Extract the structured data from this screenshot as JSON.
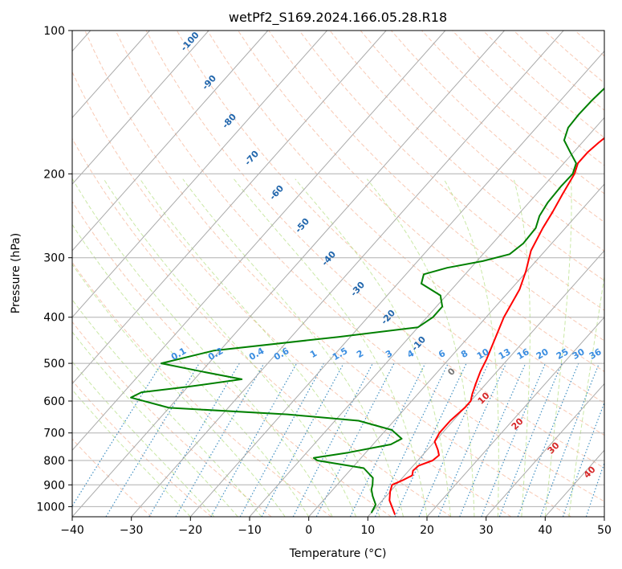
{
  "chart_data": {
    "type": "line",
    "title": "wetPf2_S169.2024.166.05.28.R18",
    "xlabel": "Temperature (°C)",
    "ylabel": "Pressure (hPa)",
    "xlim": [
      -40,
      50
    ],
    "ylim": [
      1050,
      100
    ],
    "y_scale": "log",
    "grid": "horizontal at pressure ticks; skewed isotherms every 10 °C",
    "x_ticks": [
      -40,
      -30,
      -20,
      -10,
      0,
      10,
      20,
      30,
      40,
      50
    ],
    "y_ticks": [
      100,
      200,
      300,
      400,
      500,
      600,
      700,
      800,
      900,
      1000
    ],
    "series": [
      {
        "color": "#ff0000",
        "points": [
          [
            14.3,
            1040
          ],
          [
            13,
            1010
          ],
          [
            11.2,
            970
          ],
          [
            10,
            930
          ],
          [
            9.3,
            900
          ],
          [
            10.4,
            880
          ],
          [
            11.3,
            860
          ],
          [
            10.7,
            840
          ],
          [
            10.9,
            820
          ],
          [
            12.5,
            800
          ],
          [
            12.8,
            780
          ],
          [
            11.8,
            760
          ],
          [
            10,
            730
          ],
          [
            9.5,
            700
          ],
          [
            9.5,
            660
          ],
          [
            10,
            620
          ],
          [
            10,
            600
          ],
          [
            9.2,
            580
          ],
          [
            8.2,
            550
          ],
          [
            7.2,
            520
          ],
          [
            6.4,
            490
          ],
          [
            4.6,
            440
          ],
          [
            3,
            400
          ],
          [
            1.5,
            350
          ],
          [
            -0.2,
            320
          ],
          [
            -2.4,
            290
          ],
          [
            -3.8,
            260
          ],
          [
            -4.6,
            240
          ],
          [
            -5.6,
            220
          ],
          [
            -6.6,
            200
          ],
          [
            -7.6,
            190
          ],
          [
            -7.6,
            180
          ],
          [
            -7.2,
            172
          ],
          [
            -6.3,
            160
          ],
          [
            -5.4,
            148
          ],
          [
            -5.2,
            135
          ],
          [
            -6.3,
            120
          ],
          [
            -7.2,
            110
          ],
          [
            -7.9,
            100
          ]
        ]
      },
      {
        "color": "#008000",
        "points": [
          [
            10,
            1030
          ],
          [
            9.5,
            990
          ],
          [
            7.7,
            950
          ],
          [
            6.5,
            920
          ],
          [
            6,
            900
          ],
          [
            5,
            870
          ],
          [
            2,
            830
          ],
          [
            -7,
            800
          ],
          [
            -8,
            790
          ],
          [
            -3,
            770
          ],
          [
            3,
            740
          ],
          [
            4,
            720
          ],
          [
            1,
            690
          ],
          [
            -6,
            660
          ],
          [
            -19,
            640
          ],
          [
            -40,
            620
          ],
          [
            -48,
            590
          ],
          [
            -47,
            575
          ],
          [
            -40,
            560
          ],
          [
            -32,
            540
          ],
          [
            -40,
            520
          ],
          [
            -48,
            500
          ],
          [
            -41,
            470
          ],
          [
            -22,
            440
          ],
          [
            -10,
            420
          ],
          [
            -9,
            400
          ],
          [
            -9,
            380
          ],
          [
            -11,
            360
          ],
          [
            -16,
            340
          ],
          [
            -17,
            325
          ],
          [
            -14,
            315
          ],
          [
            -9,
            305
          ],
          [
            -5.5,
            295
          ],
          [
            -4.8,
            280
          ],
          [
            -5,
            260
          ],
          [
            -6.2,
            245
          ],
          [
            -6.8,
            230
          ],
          [
            -7,
            212
          ],
          [
            -6.9,
            200
          ],
          [
            -7.9,
            190
          ],
          [
            -10.6,
            180
          ],
          [
            -13.4,
            170
          ],
          [
            -14.6,
            160
          ],
          [
            -14.8,
            150
          ],
          [
            -14.7,
            140
          ],
          [
            -14.3,
            130
          ],
          [
            -13.9,
            120
          ],
          [
            -12.8,
            110
          ],
          [
            -12,
            100
          ]
        ]
      }
    ],
    "dry_adiabat_labels": [
      "-100",
      "-90",
      "-80",
      "-70",
      "-60",
      "-50",
      "-40",
      "-30",
      "-20",
      "-10"
    ],
    "mixing_ratio_labels": [
      "0.1",
      "0.2",
      "0.4",
      "0.6",
      "1",
      "1.5",
      "2",
      "3",
      "4",
      "6",
      "8",
      "10",
      "13",
      "16",
      "20",
      "25",
      "30",
      "36"
    ],
    "moist_adiabat_labels": [
      "0",
      "10",
      "20",
      "30",
      "40"
    ],
    "colors": {
      "temperature": "#ff0000",
      "dewpoint": "#008000",
      "isotherm": "#aaaaaa",
      "dry_adiabat": "#f4a582",
      "moist_adiabat": "#a6d96a",
      "mixing_ratio": "#2b83ba",
      "dry_label": "#2166ac",
      "moist_label": "#d62728",
      "zero_label": "#777777"
    }
  }
}
